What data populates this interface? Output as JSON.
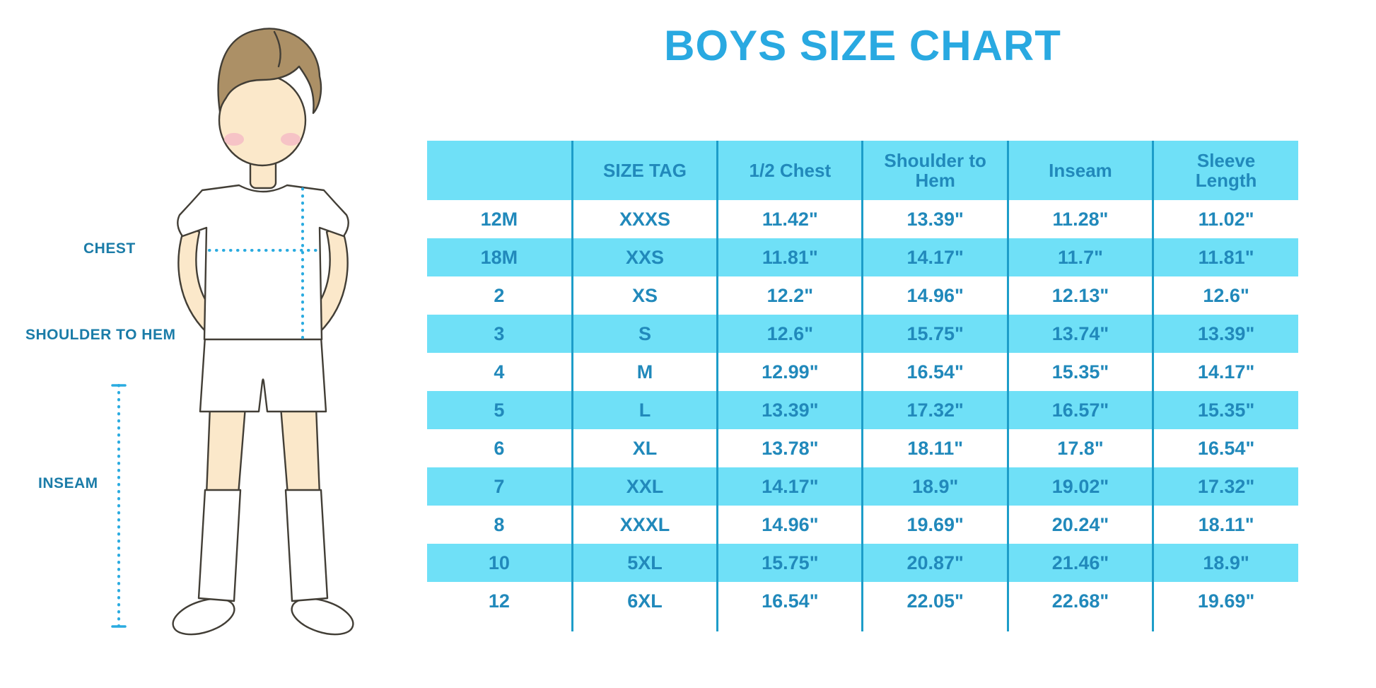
{
  "chart_data": {
    "type": "table",
    "title": "BOYS SIZE CHART",
    "columns": [
      "",
      "SIZE TAG",
      "1/2 Chest",
      "Shoulder to Hem",
      "Inseam",
      "Sleeve Length"
    ],
    "rows": [
      [
        "12M",
        "XXXS",
        "11.42\"",
        "13.39\"",
        "11.28\"",
        "11.02\""
      ],
      [
        "18M",
        "XXS",
        "11.81\"",
        "14.17\"",
        "11.7\"",
        "11.81\""
      ],
      [
        "2",
        "XS",
        "12.2\"",
        "14.96\"",
        "12.13\"",
        "12.6\""
      ],
      [
        "3",
        "S",
        "12.6\"",
        "15.75\"",
        "13.74\"",
        "13.39\""
      ],
      [
        "4",
        "M",
        "12.99\"",
        "16.54\"",
        "15.35\"",
        "14.17\""
      ],
      [
        "5",
        "L",
        "13.39\"",
        "17.32\"",
        "16.57\"",
        "15.35\""
      ],
      [
        "6",
        "XL",
        "13.78\"",
        "18.11\"",
        "17.8\"",
        "16.54\""
      ],
      [
        "7",
        "XXL",
        "14.17\"",
        "18.9\"",
        "19.02\"",
        "17.32\""
      ],
      [
        "8",
        "XXXL",
        "14.96\"",
        "19.69\"",
        "20.24\"",
        "18.11\""
      ],
      [
        "10",
        "5XL",
        "15.75\"",
        "20.87\"",
        "21.46\"",
        "18.9\""
      ],
      [
        "12",
        "6XL",
        "16.54\"",
        "22.05\"",
        "22.68\"",
        "19.69\""
      ]
    ],
    "layout": {
      "striped_rows": true,
      "first_data_row_background": "white",
      "grid": "vertical-dividers-only"
    }
  },
  "figure": {
    "labels": {
      "chest": "CHEST",
      "shoulder_to_hem": "SHOULDER TO HEM",
      "inseam": "INSEAM"
    }
  },
  "colors": {
    "title_blue": "#29A9E1",
    "header_bg": "#6FE0F7",
    "cell_text": "#2189BB",
    "border_blue": "#1D9DC9",
    "label_blue": "#1B7CA8",
    "measure_line": "#2AABE0",
    "skin": "#FBE8CA",
    "hair": "#AC9066",
    "blush": "#F5BCC6",
    "outline": "#423E36",
    "garment": "#FFFFFF"
  }
}
